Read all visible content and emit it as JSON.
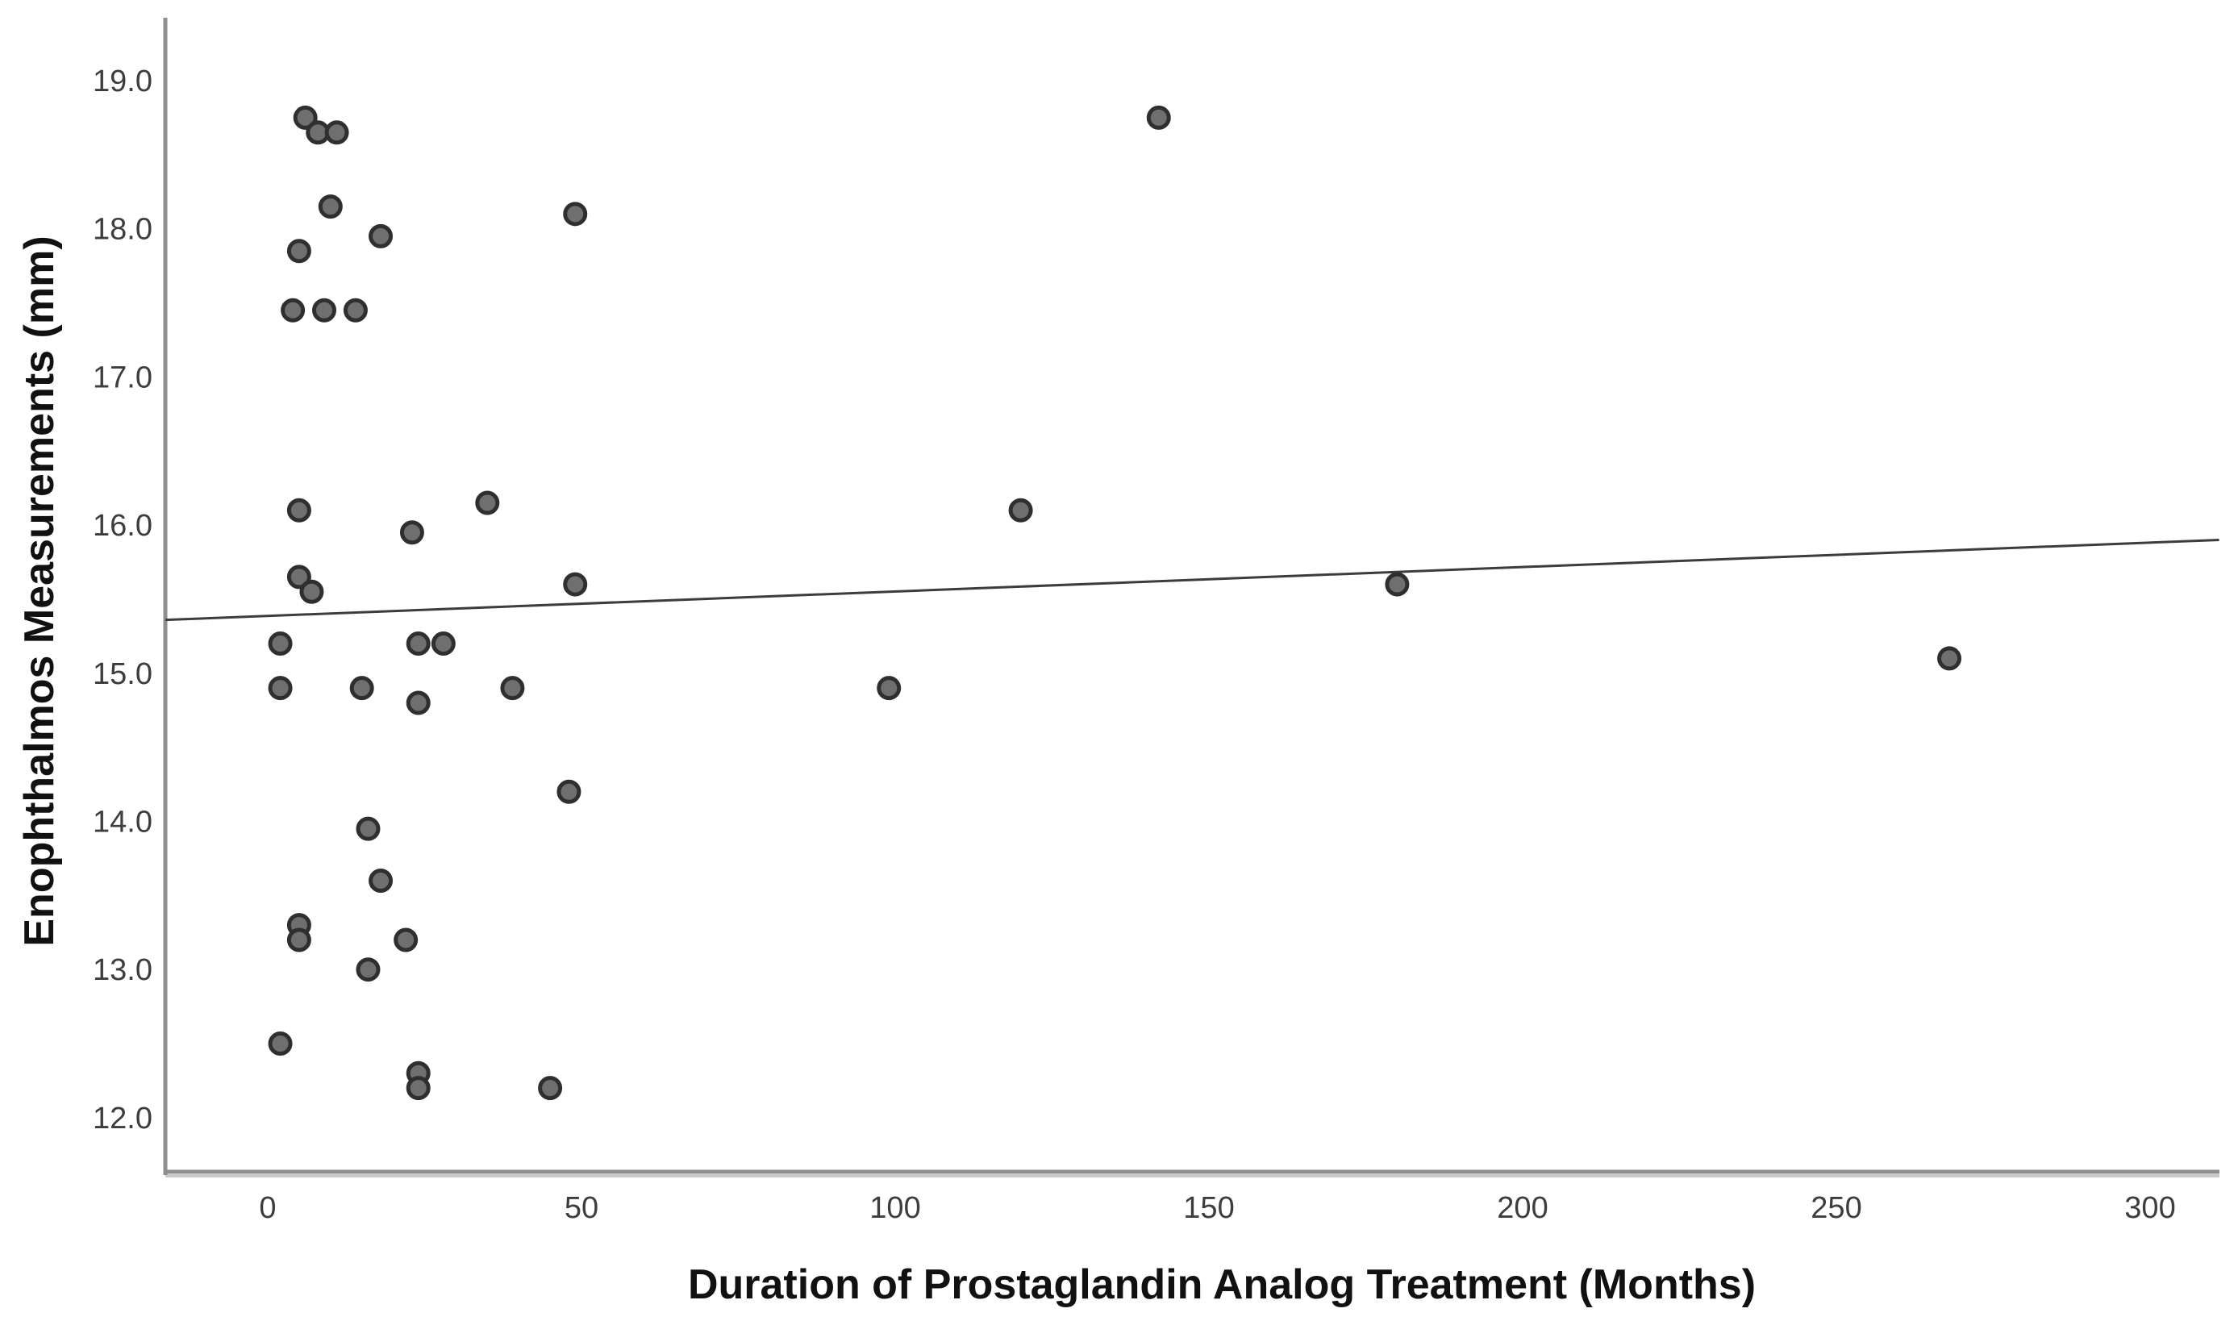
{
  "figure": {
    "x_axis_title": "Duration of Prostaglandin Analog Treatment (Months)",
    "y_axis_title": "Enophthalmos Measurements (mm)"
  },
  "chart_data": {
    "type": "scatter",
    "title": "",
    "xlabel": "Duration of Prostaglandin Analog Treatment (Months)",
    "ylabel": "Enophthalmos Measurements (mm)",
    "xlim": [
      -16.3,
      311
    ],
    "ylim": [
      11.6,
      19.45
    ],
    "x_ticks": [
      0,
      50,
      100,
      150,
      200,
      250,
      300
    ],
    "x_tick_labels": [
      "0",
      "50",
      "100",
      "150",
      "200",
      "250",
      "300"
    ],
    "y_ticks": [
      19.0,
      18.0,
      17.0,
      16.0,
      15.0,
      14.0,
      13.0,
      12.0
    ],
    "y_tick_labels": [
      "19.0",
      "18.0",
      "17.0",
      "16.0",
      "15.0",
      "14.0",
      "13.0",
      "12.0"
    ],
    "grid": false,
    "legend": "none",
    "points": [
      [
        6,
        18.75
      ],
      [
        8,
        18.65
      ],
      [
        11,
        18.65
      ],
      [
        142,
        18.75
      ],
      [
        10,
        18.15
      ],
      [
        49,
        18.1
      ],
      [
        18,
        17.95
      ],
      [
        5,
        17.85
      ],
      [
        4,
        17.45
      ],
      [
        9,
        17.45
      ],
      [
        14,
        17.45
      ],
      [
        5,
        16.1
      ],
      [
        35,
        16.15
      ],
      [
        120,
        16.1
      ],
      [
        23,
        15.95
      ],
      [
        5,
        15.65
      ],
      [
        7,
        15.55
      ],
      [
        49,
        15.6
      ],
      [
        180,
        15.6
      ],
      [
        2,
        15.2
      ],
      [
        24,
        15.2
      ],
      [
        28,
        15.2
      ],
      [
        268,
        15.1
      ],
      [
        2,
        14.9
      ],
      [
        15,
        14.9
      ],
      [
        39,
        14.9
      ],
      [
        99,
        14.9
      ],
      [
        24,
        14.8
      ],
      [
        48,
        14.2
      ],
      [
        16,
        13.95
      ],
      [
        18,
        13.6
      ],
      [
        5,
        13.3
      ],
      [
        5,
        13.2
      ],
      [
        22,
        13.2
      ],
      [
        16,
        13.0
      ],
      [
        2,
        12.5
      ],
      [
        24,
        12.3
      ],
      [
        24,
        12.2
      ],
      [
        45,
        12.2
      ]
    ],
    "trend_line": {
      "x_start": -16.3,
      "value_start": 15.36,
      "x_end": 311,
      "value_end": 15.9
    }
  },
  "style": {
    "point_fill": "#6f6f6f",
    "point_stroke": "#2f2f2f",
    "axis_line_color": "#8f8f8f",
    "axis_shadow_color": "#c9c9c9",
    "trend_line_color": "#3c3c3c",
    "tick_label_color": "#3d3d3d",
    "title_color": "#111111",
    "background": "#ffffff"
  }
}
